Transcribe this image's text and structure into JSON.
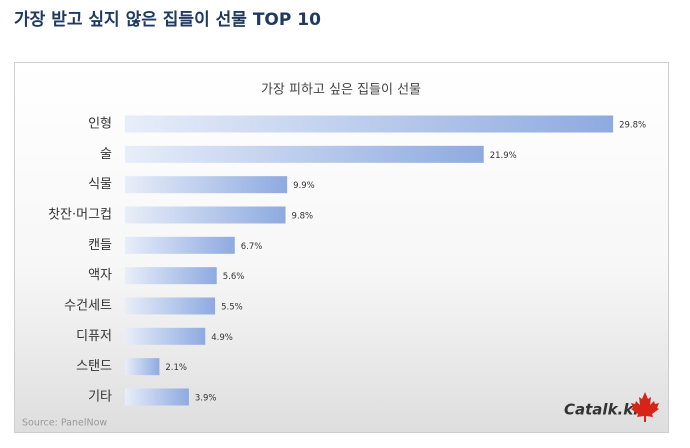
{
  "page_title": "가장 받고 싶지 않은 집들이 선물 TOP 10",
  "chart_data": {
    "type": "bar",
    "orientation": "horizontal",
    "title": "가장 피하고 싶은 집들이 선물",
    "categories": [
      "인형",
      "술",
      "식물",
      "찻잔·머그컵",
      "캔들",
      "액자",
      "수건세트",
      "디퓨저",
      "스탠드",
      "기타"
    ],
    "values": [
      29.8,
      21.9,
      9.9,
      9.8,
      6.7,
      5.6,
      5.5,
      4.9,
      2.1,
      3.9
    ],
    "value_labels": [
      "29.8%",
      "21.9%",
      "9.9%",
      "9.8%",
      "6.7%",
      "5.6%",
      "5.5%",
      "4.9%",
      "2.1%",
      "3.9%"
    ],
    "color": "#8eaae0",
    "source": "Source: PanelNow",
    "logo": "Catalk.kr"
  }
}
